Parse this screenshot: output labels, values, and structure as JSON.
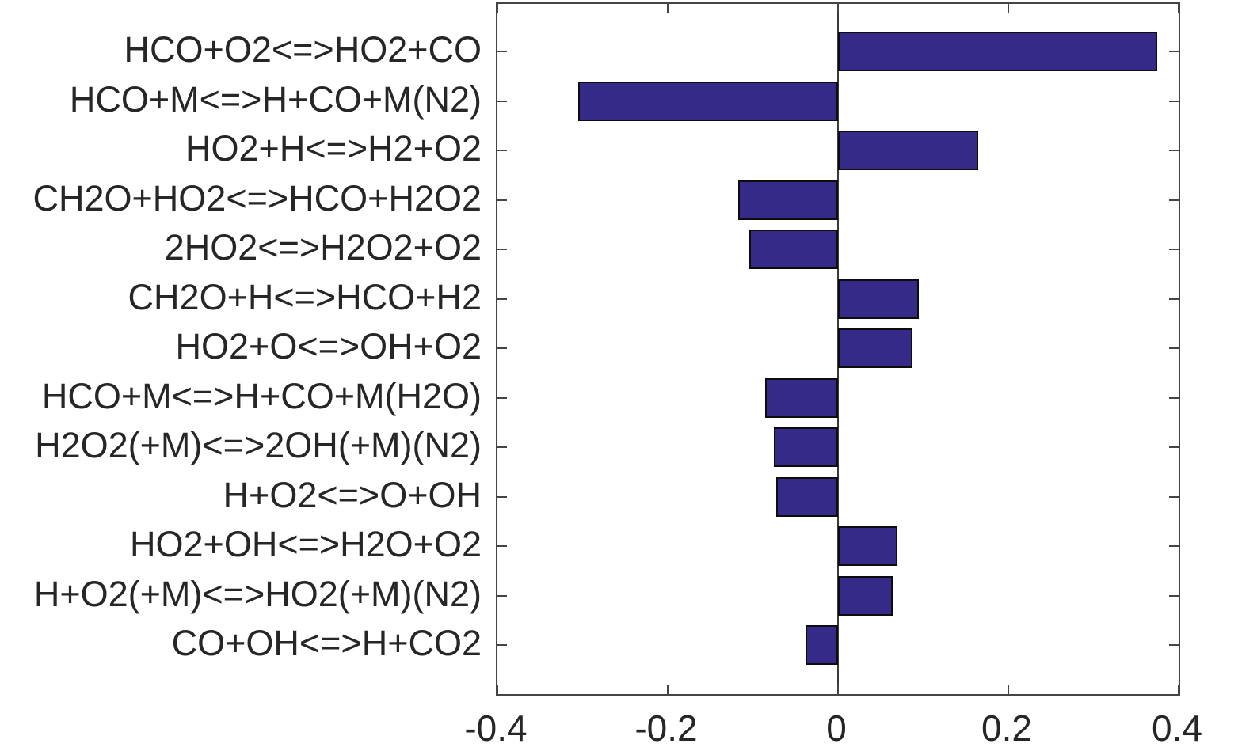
{
  "chart_data": {
    "type": "bar",
    "orientation": "horizontal",
    "title": "",
    "xlabel": "",
    "ylabel": "",
    "categories": [
      "HCO+O2<=>HO2+CO",
      "HCO+M<=>H+CO+M(N2)",
      "HO2+H<=>H2+O2",
      "CH2O+HO2<=>HCO+H2O2",
      "2HO2<=>H2O2+O2",
      "CH2O+H<=>HCO+H2",
      "HO2+O<=>OH+O2",
      "HCO+M<=>H+CO+M(H2O)",
      "H2O2(+M)<=>2OH(+M)(N2)",
      "H+O2<=>O+OH",
      "HO2+OH<=>H2O+O2",
      "H+O2(+M)<=>HO2(+M)(N2)",
      "CO+OH<=>H+CO2"
    ],
    "values": [
      0.375,
      -0.305,
      0.165,
      -0.117,
      -0.104,
      0.095,
      0.087,
      -0.086,
      -0.075,
      -0.073,
      0.07,
      0.064,
      -0.038
    ],
    "xlim": [
      -0.4,
      0.4
    ],
    "x_ticks": [
      -0.4,
      -0.2,
      0,
      0.2,
      0.4
    ],
    "x_tick_labels": [
      "-0.4",
      "-0.2",
      "0",
      "0.2",
      "0.4"
    ],
    "grid": false,
    "legend": null,
    "colors": {
      "bar_fill": "#352a87",
      "bar_edge": "#0d0d0d",
      "axis_line": "#444444",
      "zero_line": "#3a3a3a",
      "text": "#262626",
      "background": "#ffffff"
    }
  }
}
